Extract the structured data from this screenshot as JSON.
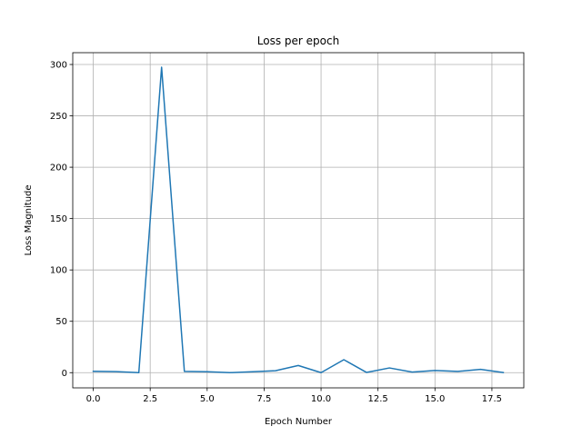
{
  "chart_data": {
    "type": "line",
    "title": "Loss per epoch",
    "xlabel": "Epoch Number",
    "ylabel": "Loss Magnitude",
    "xlim": [
      -0.9,
      18.9
    ],
    "ylim": [
      -14.8,
      311.5
    ],
    "grid": true,
    "xticks": [
      0.0,
      2.5,
      5.0,
      7.5,
      10.0,
      12.5,
      15.0,
      17.5
    ],
    "xtick_labels": [
      "0.0",
      "2.5",
      "5.0",
      "7.5",
      "10.0",
      "12.5",
      "15.0",
      "17.5"
    ],
    "yticks": [
      0,
      50,
      100,
      150,
      200,
      250,
      300
    ],
    "ytick_labels": [
      "0",
      "50",
      "100",
      "150",
      "200",
      "250",
      "300"
    ],
    "series": [
      {
        "color": "#1f77b4",
        "x": [
          0,
          1,
          2,
          3,
          4,
          5,
          6,
          7,
          8,
          9,
          10,
          11,
          12,
          13,
          14,
          15,
          16,
          17,
          18
        ],
        "y": [
          1.3,
          1.0,
          0.0,
          297.3,
          1.2,
          0.9,
          0.0,
          0.9,
          1.9,
          7.0,
          0.0,
          12.6,
          0.2,
          4.6,
          0.6,
          2.1,
          1.2,
          3.2,
          0.1
        ]
      }
    ]
  }
}
